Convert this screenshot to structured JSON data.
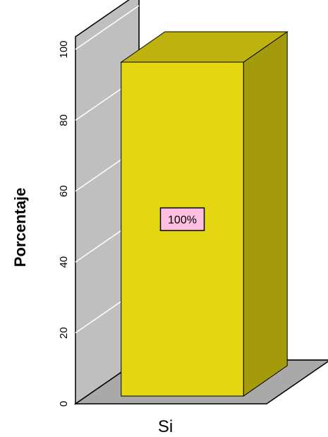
{
  "chart_data": {
    "type": "bar",
    "categories": [
      "Si"
    ],
    "values": [
      100
    ],
    "ylabel": "Porcentaje",
    "xlabel": "",
    "ylim": [
      0,
      100
    ],
    "yticks": [
      0,
      20,
      40,
      60,
      80,
      100
    ],
    "data_labels": [
      "100%"
    ],
    "grid": true,
    "three_d": true,
    "legend": "none",
    "colors": {
      "bar_front": "#e4d610",
      "bar_side": "#a39a0c",
      "bar_top": "#bdb20e",
      "wall_back": "#ffffff",
      "wall_left": "#bfbfbf",
      "floor": "#a9a9a9",
      "data_label_bg": "#ffbfe0"
    }
  }
}
